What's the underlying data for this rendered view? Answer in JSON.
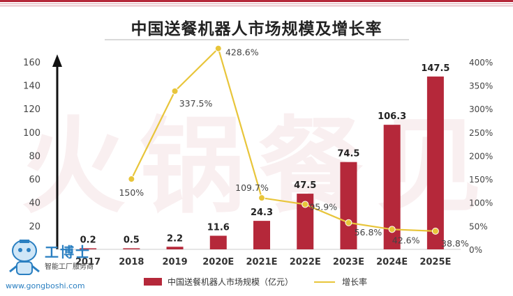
{
  "page": {
    "watermark_chars": [
      "火",
      "锅",
      "餐",
      "见"
    ],
    "logo": {
      "name": "工博士",
      "subtitle": "智能工厂服务商",
      "url": "www.gongboshi.com"
    }
  },
  "chart_data": {
    "type": "bar",
    "title": "中国送餐机器人市场规模及增长率",
    "categories": [
      "2017",
      "2018",
      "2019",
      "2020E",
      "2021E",
      "2022E",
      "2023E",
      "2024E",
      "2025E"
    ],
    "series": [
      {
        "name": "中国送餐机器人市场规模（亿元）",
        "type": "bar",
        "axis": "left",
        "color": "#b5283a",
        "values": [
          0.2,
          0.5,
          2.2,
          11.6,
          24.3,
          47.5,
          74.5,
          106.3,
          147.5
        ],
        "labels": [
          "0.2",
          "0.5",
          "2.2",
          "11.6",
          "24.3",
          "47.5",
          "74.5",
          "106.3",
          "147.5"
        ]
      },
      {
        "name": "增长率",
        "type": "line",
        "axis": "right",
        "color": "#e8c53a",
        "values": [
          null,
          150,
          337.5,
          428.6,
          109.7,
          95.9,
          56.8,
          42.6,
          38.8
        ],
        "labels": [
          null,
          "150%",
          "337.5%",
          "428.6%",
          "109.7%",
          "95.9%",
          "56.8%",
          "42.6%",
          "38.8%"
        ]
      }
    ],
    "y_left": {
      "ylim": [
        0,
        170
      ],
      "ticks": [
        20,
        40,
        60,
        80,
        100,
        120,
        140,
        160
      ]
    },
    "y_right": {
      "ylim": [
        0,
        425
      ],
      "ticks": [
        "0%",
        "50%",
        "100%",
        "150%",
        "200%",
        "250%",
        "300%",
        "350%",
        "400%"
      ],
      "tick_values": [
        0,
        50,
        100,
        150,
        200,
        250,
        300,
        350,
        400
      ]
    },
    "grid": false,
    "legend": {
      "position": "bottom"
    }
  }
}
